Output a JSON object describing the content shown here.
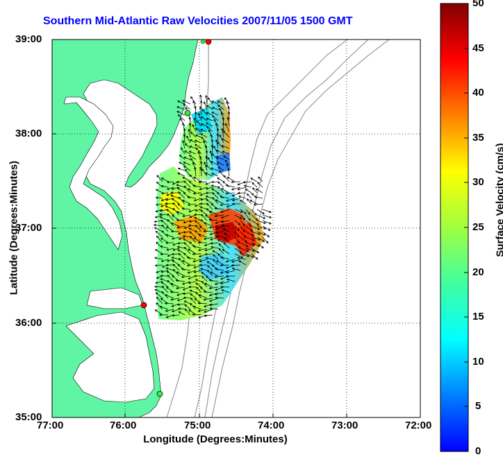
{
  "title": "Southern Mid-Atlantic Raw Velocities 2007/11/05 1500 GMT",
  "x_axis": {
    "label": "Longitude (Degrees:Minutes)",
    "ticks": [
      "77:00",
      "76:00",
      "75:00",
      "74:00",
      "73:00",
      "72:00"
    ]
  },
  "y_axis": {
    "label": "Latitude (Degrees:Minutes)",
    "ticks": [
      "39:00",
      "38:00",
      "37:00",
      "36:00",
      "35:00"
    ]
  },
  "colorbar": {
    "label": "Surface Velocity (cm/s)",
    "ticks": [
      "50",
      "45",
      "40",
      "35",
      "30",
      "25",
      "20",
      "15",
      "10",
      "5",
      "0"
    ],
    "min": 0,
    "max": 50,
    "colormap": "jet"
  },
  "colors": {
    "land": "#5ff5a5",
    "title": "#0000ff",
    "bathymetry": "#999999",
    "station_red": "#ff0000",
    "station_green": "#33ee33"
  },
  "map": {
    "lon_range": [
      -77,
      -72
    ],
    "lat_range": [
      35,
      39
    ],
    "grid": "dotted"
  }
}
